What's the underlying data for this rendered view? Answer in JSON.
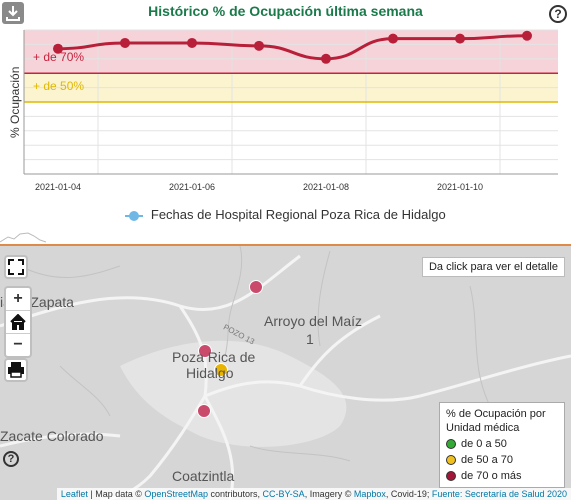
{
  "header": {
    "title": "Histórico % de Ocupación última semana",
    "download_icon": "download-icon",
    "help_icon": "help-icon",
    "help_glyph": "?"
  },
  "chart_data": {
    "type": "line",
    "title": "Histórico % de Ocupación última semana",
    "ylabel": "% Ocupación",
    "xlabel": "",
    "x_ticks": [
      "2021-01-04",
      "2021-01-06",
      "2021-01-08",
      "2021-01-10"
    ],
    "ylim": [
      0,
      100
    ],
    "series": [
      {
        "name": "Fechas de Hospital Regional Poza Rica de Hidalgo",
        "x": [
          "2021-01-04",
          "2021-01-05",
          "2021-01-06",
          "2021-01-07",
          "2021-01-08",
          "2021-01-09",
          "2021-01-10",
          "2021-01-11"
        ],
        "y": [
          87,
          91,
          91,
          89,
          80,
          94,
          94,
          96
        ]
      }
    ],
    "thresholds": [
      {
        "label": "+ de 70%",
        "value": 70,
        "color": "#c8233e"
      },
      {
        "label": "+ de 50%",
        "value": 50,
        "color": "#e0b800"
      }
    ],
    "line_color": "#b8203a",
    "grid": true,
    "legend_position": "bottom"
  },
  "map": {
    "places": {
      "zapata": "iano Zapata",
      "arroyo": "Arroyo del Maíz",
      "arroyo_num": "1",
      "poza1": "Poza Rica de",
      "poza2": "Hidalgo",
      "zacate": "Zacate Colorado",
      "coatzintla": "Coatzintla",
      "road": "POZO 13"
    },
    "info_button": "Da click para ver el detalle",
    "zoom_in": "+",
    "zoom_out": "−",
    "fullscreen_icon": "fullscreen-icon",
    "home_icon": "home-icon",
    "print_icon": "print-icon",
    "legend": {
      "title": "% de Ocupación por Unidad médica",
      "items": [
        {
          "label": "de 0 a 50",
          "color": "#33aa33"
        },
        {
          "label": "de 50 a 70",
          "color": "#f0c020"
        },
        {
          "label": "de 70 o más",
          "color": "#a3163a"
        }
      ]
    },
    "markers": [
      {
        "level": "de 70 o más",
        "color": "#c94a6a"
      },
      {
        "level": "de 70 o más",
        "color": "#c94a6a"
      },
      {
        "level": "de 50 a 70",
        "color": "#e8b400"
      },
      {
        "level": "de 70 o más",
        "color": "#c94a6a"
      }
    ],
    "attribution": {
      "leaflet": "Leaflet",
      "part1": " | Map data © ",
      "osm": "OpenStreetMap",
      "part2": " contributors, ",
      "ccbysa": "CC-BY-SA",
      "part3": ", Imagery © ",
      "mapbox": "Mapbox",
      "part4": ", Covid-19; ",
      "source": "Fuente: Secretaría de Salud 2020"
    },
    "help_glyph": "?"
  }
}
